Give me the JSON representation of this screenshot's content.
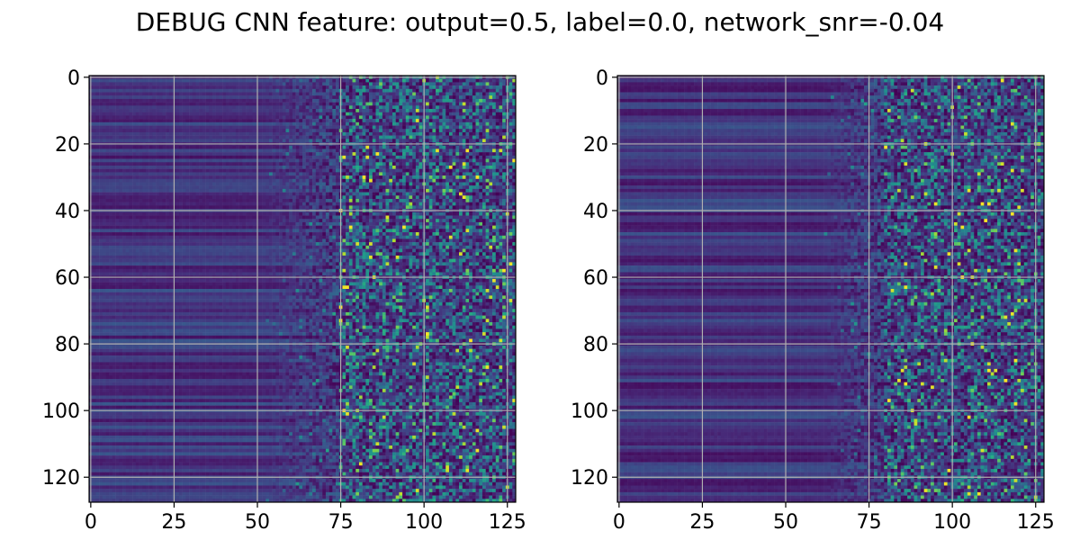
{
  "figure": {
    "title": "DEBUG CNN feature: output=0.5, label=0.0, network_snr=-0.04"
  },
  "colors": {
    "colormap": "viridis",
    "grid": "#b0b0b0",
    "axes": "#000000",
    "background": "#ffffff"
  },
  "chart_data": [
    {
      "type": "heatmap",
      "title": "",
      "xlabel": "",
      "ylabel": "",
      "shape": [
        128,
        128
      ],
      "xlim": [
        -0.5,
        127.5
      ],
      "ylim": [
        127.5,
        -0.5
      ],
      "x_ticks": [
        0,
        25,
        50,
        75,
        100,
        125
      ],
      "x_tick_labels": [
        "0",
        "25",
        "50",
        "75",
        "100",
        "125"
      ],
      "y_ticks": [
        0,
        20,
        40,
        60,
        80,
        100,
        120
      ],
      "y_tick_labels": [
        "0",
        "20",
        "40",
        "60",
        "80",
        "100",
        "120"
      ],
      "grid": true,
      "colormap": "viridis",
      "value_range": [
        0,
        1
      ],
      "description_profile": {
        "smooth_banded_columns": [
          0,
          50
        ],
        "transition_columns": [
          50,
          75
        ],
        "noisy_columns": [
          75,
          127
        ]
      }
    },
    {
      "type": "heatmap",
      "title": "",
      "xlabel": "",
      "ylabel": "",
      "shape": [
        128,
        128
      ],
      "xlim": [
        -0.5,
        127.5
      ],
      "ylim": [
        127.5,
        -0.5
      ],
      "x_ticks": [
        0,
        25,
        50,
        75,
        100,
        125
      ],
      "x_tick_labels": [
        "0",
        "25",
        "50",
        "75",
        "100",
        "125"
      ],
      "y_ticks": [
        0,
        20,
        40,
        60,
        80,
        100,
        120
      ],
      "y_tick_labels": [
        "0",
        "20",
        "40",
        "60",
        "80",
        "100",
        "120"
      ],
      "grid": true,
      "colormap": "viridis",
      "value_range": [
        0,
        1
      ],
      "description_profile": {
        "smooth_banded_columns": [
          0,
          60
        ],
        "transition_columns": [
          60,
          80
        ],
        "noisy_columns": [
          80,
          127
        ]
      }
    }
  ]
}
